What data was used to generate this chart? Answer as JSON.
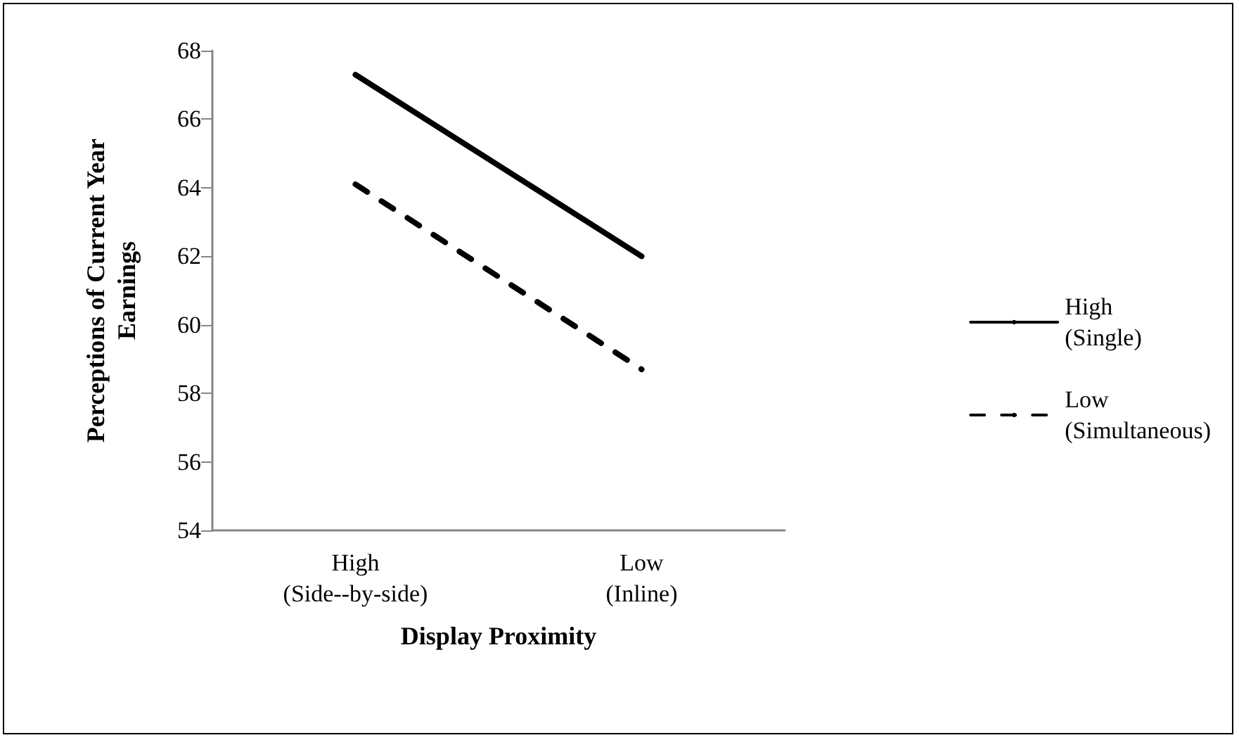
{
  "chart_data": {
    "type": "line",
    "xlabel": "Display Proximity",
    "ylabel": "Perceptions of Current Year\nEarnings",
    "categories": [
      "High\n(Side--by-side)",
      "Low\n(Inline)"
    ],
    "series": [
      {
        "name": "High\n(Single)",
        "color": "#000000",
        "values": [
          67.3,
          62.0
        ],
        "line_style": "solid"
      },
      {
        "name": "Low\n(Simultaneous)",
        "color": "#000000",
        "values": [
          64.1,
          58.7
        ],
        "line_style": "dashed"
      }
    ],
    "ylim": [
      54,
      68
    ],
    "yticks": [
      54,
      56,
      58,
      60,
      62,
      64,
      66,
      68
    ],
    "grid": false,
    "legend": "right",
    "marker": "none"
  }
}
